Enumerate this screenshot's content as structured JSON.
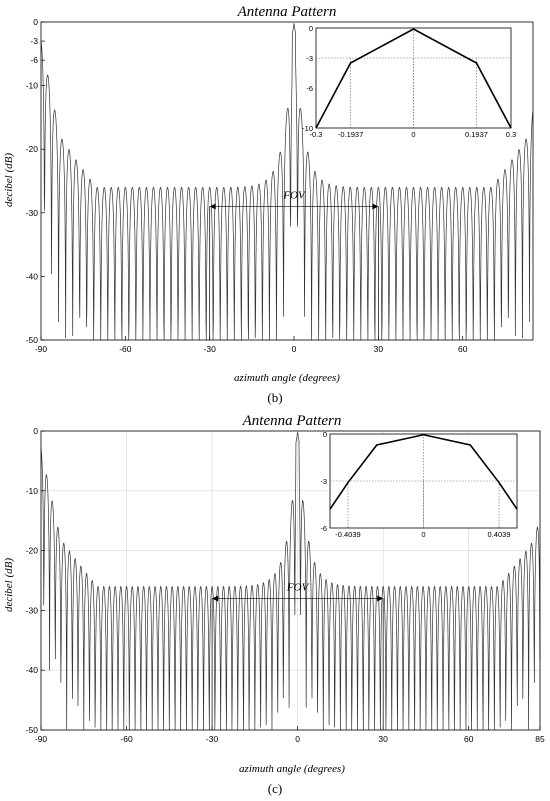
{
  "chart_data": [
    {
      "type": "line",
      "panel_label": "(b)",
      "title": "Antenna Pattern",
      "xlabel": "azimuth angle (degrees)",
      "ylabel": "decibel (dB)",
      "xlim": [
        -90,
        85
      ],
      "ylim": [
        -50,
        0
      ],
      "xticks": [
        -90,
        -60,
        -30,
        0,
        30,
        60
      ],
      "yticks": [
        0,
        -3,
        -6,
        -10,
        -20,
        -30,
        -40,
        -50
      ],
      "grid": false,
      "annotation": {
        "label": "FOV",
        "x_range": [
          -30,
          30
        ],
        "y": -29
      },
      "pattern": {
        "lobe_spacing_deg": 2.5,
        "edge_rise": "steep near ±90"
      },
      "inset": {
        "x": [
          -0.3,
          -0.1937,
          0,
          0.1937,
          0.3
        ],
        "y": [
          -10,
          -3.5,
          -0.1,
          -3.5,
          -10
        ],
        "xlim": [
          -0.3,
          0.3
        ],
        "ylim": [
          -10,
          0
        ],
        "xticks": [
          -0.3,
          -0.1937,
          0,
          0.1937,
          0.3
        ],
        "yticks": [
          0,
          -3,
          -6,
          -10
        ],
        "markers": {
          "x": [
            -0.1937,
            0,
            0.1937
          ],
          "y": -3
        }
      }
    },
    {
      "type": "line",
      "panel_label": "(c)",
      "title": "Antenna Pattern",
      "xlabel": "azimuth angle (degrees)",
      "ylabel": "decibel (dB)",
      "xlim": [
        -90,
        85
      ],
      "ylim": [
        -50,
        0
      ],
      "xticks": [
        -90,
        -60,
        -30,
        0,
        30,
        60,
        85
      ],
      "yticks": [
        0,
        -10,
        -20,
        -30,
        -40,
        -50
      ],
      "grid": true,
      "annotation": {
        "label": "FOV",
        "x_range": [
          -30,
          30
        ],
        "y": -28
      },
      "pattern": {
        "lobe_spacing_deg": 2.0,
        "edge_rise": "steep near ±85"
      },
      "inset": {
        "x": [
          -0.5,
          -0.4039,
          -0.25,
          0,
          0.25,
          0.4039,
          0.5
        ],
        "y": [
          -4.8,
          -3.1,
          -0.7,
          -0.05,
          -0.7,
          -3.1,
          -4.8
        ],
        "xlim": [
          -0.5,
          0.5
        ],
        "ylim": [
          -6,
          0
        ],
        "xticks": [
          -0.4039,
          0,
          0.4039
        ],
        "yticks": [
          0,
          -3,
          -6
        ],
        "markers": {
          "x": [
            -0.4039,
            0,
            0.4039
          ],
          "y": -3
        }
      }
    }
  ]
}
